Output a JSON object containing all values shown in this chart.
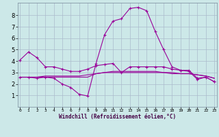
{
  "xlabel": "Windchill (Refroidissement éolien,°C)",
  "bg_color": "#cce8e8",
  "grid_color": "#aabbcc",
  "line_color": "#990099",
  "xmin": 0,
  "xmax": 23,
  "ymin": 0,
  "ymax": 9,
  "xticks": [
    0,
    1,
    2,
    3,
    4,
    5,
    6,
    7,
    8,
    9,
    10,
    11,
    12,
    13,
    14,
    15,
    16,
    17,
    18,
    19,
    20,
    21,
    22,
    23
  ],
  "yticks": [
    1,
    2,
    3,
    4,
    5,
    6,
    7,
    8
  ],
  "line1_x": [
    0,
    1,
    2,
    3,
    4,
    5,
    6,
    7,
    8,
    9,
    10,
    11,
    12,
    13,
    14,
    15,
    16,
    17,
    18,
    19,
    20,
    21,
    22,
    23
  ],
  "line1_y": [
    4.1,
    4.8,
    4.3,
    3.5,
    3.5,
    3.3,
    3.1,
    3.1,
    3.3,
    3.6,
    3.7,
    3.8,
    3.0,
    3.5,
    3.5,
    3.5,
    3.5,
    3.5,
    3.3,
    3.2,
    3.2,
    2.5,
    2.6,
    2.2
  ],
  "line2_x": [
    0,
    1,
    2,
    3,
    4,
    5,
    6,
    7,
    8,
    9,
    10,
    11,
    12,
    13,
    14,
    15,
    16,
    17,
    18,
    19,
    20,
    21,
    22,
    23
  ],
  "line2_y": [
    2.6,
    2.6,
    2.5,
    2.6,
    2.5,
    2.0,
    1.7,
    1.1,
    0.95,
    3.8,
    6.3,
    7.5,
    7.7,
    8.6,
    8.7,
    8.4,
    6.6,
    5.0,
    3.5,
    3.2,
    3.1,
    2.4,
    2.6,
    2.2
  ],
  "line3_x": [
    0,
    1,
    2,
    3,
    4,
    5,
    6,
    7,
    8,
    9,
    10,
    11,
    12,
    13,
    14,
    15,
    16,
    17,
    18,
    19,
    20,
    21,
    22,
    23
  ],
  "line3_y": [
    2.6,
    2.6,
    2.6,
    2.6,
    2.6,
    2.6,
    2.6,
    2.6,
    2.6,
    2.9,
    3.0,
    3.1,
    3.1,
    3.1,
    3.1,
    3.1,
    3.1,
    3.0,
    3.0,
    2.9,
    2.9,
    2.8,
    2.7,
    2.5
  ],
  "line4_x": [
    0,
    1,
    2,
    3,
    4,
    5,
    6,
    7,
    8,
    9,
    10,
    11,
    12,
    13,
    14,
    15,
    16,
    17,
    18,
    19,
    20,
    21,
    22,
    23
  ],
  "line4_y": [
    2.6,
    2.6,
    2.6,
    2.7,
    2.7,
    2.7,
    2.7,
    2.7,
    2.8,
    2.9,
    3.0,
    3.0,
    3.0,
    3.0,
    3.0,
    3.0,
    3.0,
    3.0,
    2.9,
    2.9,
    2.9,
    2.8,
    2.7,
    2.5
  ],
  "xlabel_color": "#440044",
  "xlabel_fontsize": 5.5,
  "tick_fontsize_x": 4.5,
  "tick_fontsize_y": 6.0,
  "linewidth": 0.8,
  "marker_size": 3.0
}
